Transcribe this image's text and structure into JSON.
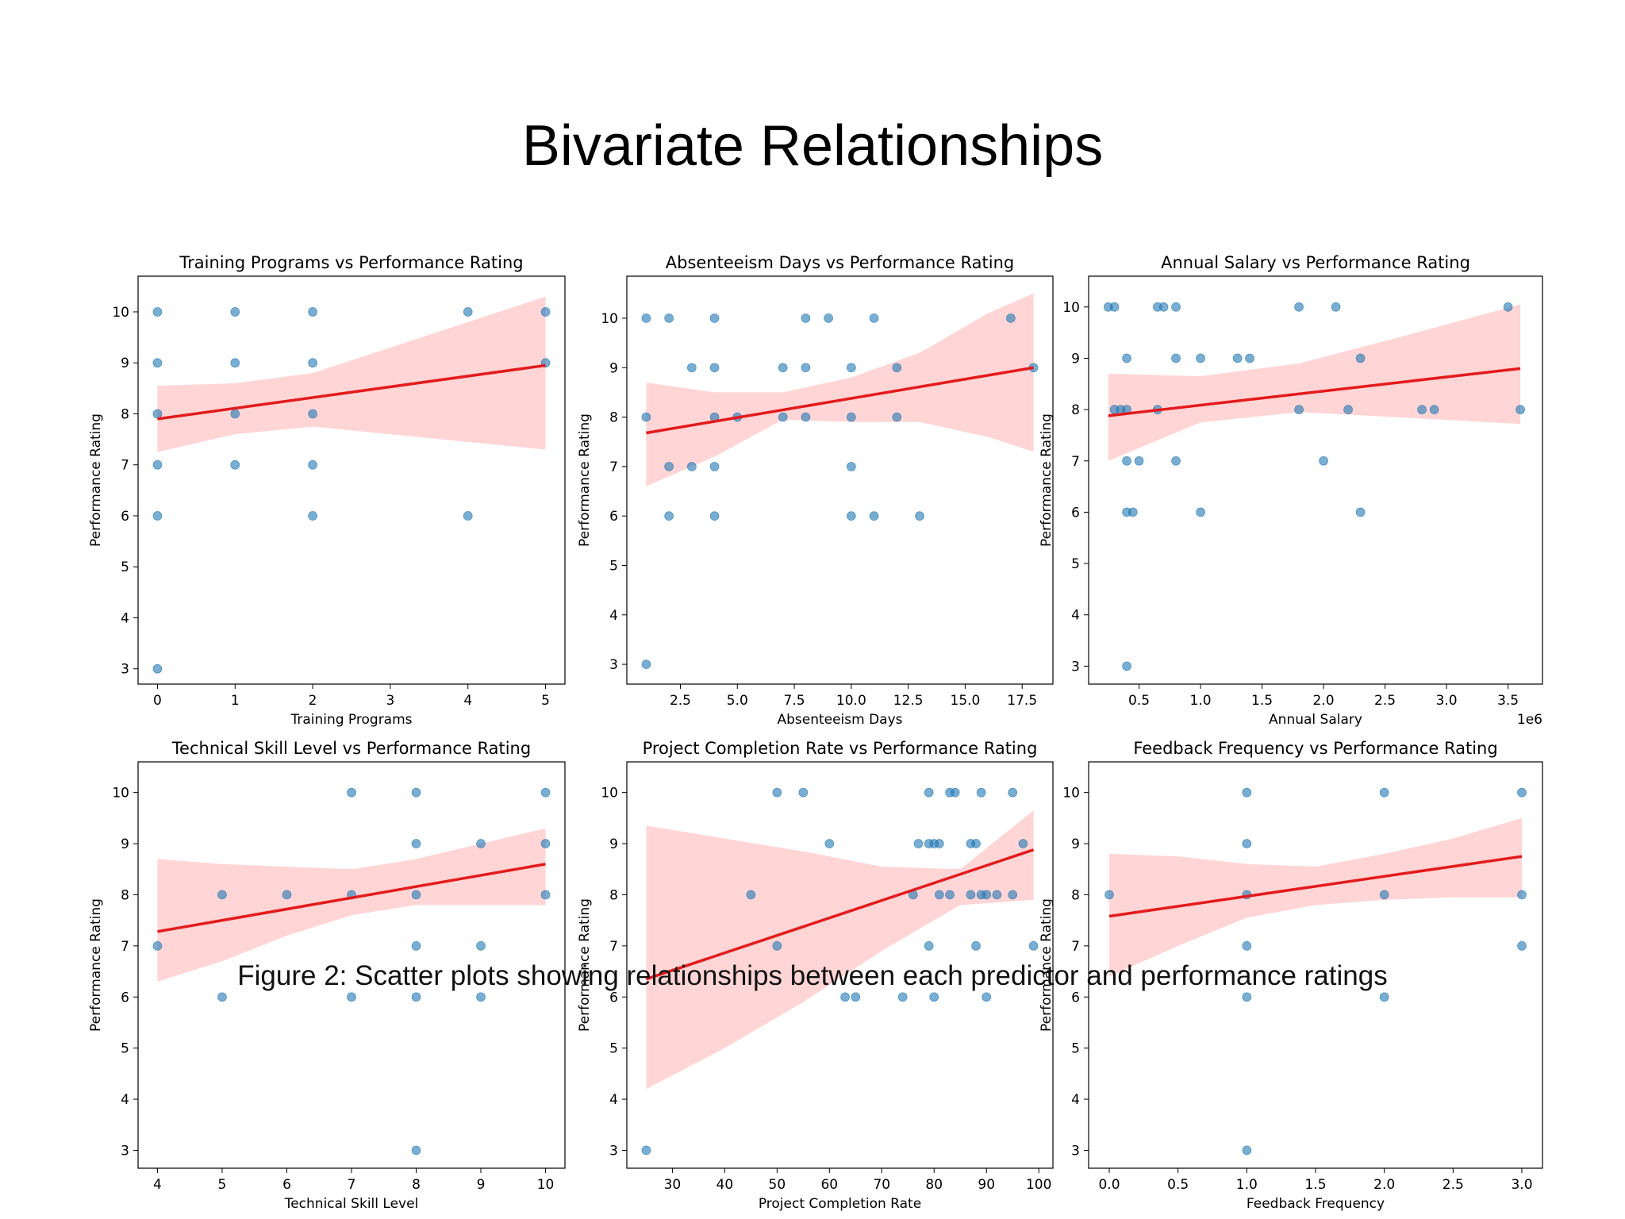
{
  "page": {
    "title": "Bivariate Relationships",
    "caption": "Figure 2: Scatter plots showing relationships between each predictor and performance ratings"
  },
  "colors": {
    "point": "#1f77b4",
    "fit_line": "#e41a1c",
    "confidence_band": "#ffb3b3"
  },
  "chart_data": [
    {
      "type": "scatter",
      "title": "Training Programs vs Performance Rating",
      "xlabel": "Training Programs",
      "ylabel": "Performance Rating",
      "xlim": [
        -0.25,
        5.25
      ],
      "ylim": [
        2.7,
        10.7
      ],
      "xticks": [
        0,
        1,
        2,
        3,
        4,
        5
      ],
      "xtick_labels": [
        "0",
        "1",
        "2",
        "3",
        "4",
        "5"
      ],
      "yticks": [
        3,
        4,
        5,
        6,
        7,
        8,
        9,
        10
      ],
      "ytick_labels": [
        "3",
        "4",
        "5",
        "6",
        "7",
        "8",
        "9",
        "10"
      ],
      "x_offset_label": "",
      "points": [
        [
          0,
          10
        ],
        [
          0,
          9
        ],
        [
          0,
          8
        ],
        [
          0,
          7
        ],
        [
          0,
          6
        ],
        [
          0,
          3
        ],
        [
          1,
          10
        ],
        [
          1,
          9
        ],
        [
          1,
          8
        ],
        [
          1,
          7
        ],
        [
          2,
          10
        ],
        [
          2,
          9
        ],
        [
          2,
          8
        ],
        [
          2,
          7
        ],
        [
          2,
          6
        ],
        [
          4,
          10
        ],
        [
          4,
          6
        ],
        [
          5,
          10
        ],
        [
          5,
          9
        ]
      ],
      "fit": {
        "x": [
          0,
          5
        ],
        "y": [
          7.9,
          8.95
        ]
      },
      "band": {
        "x": [
          0,
          1,
          2,
          3,
          4,
          5
        ],
        "upper": [
          8.55,
          8.6,
          8.8,
          9.3,
          9.8,
          10.3
        ],
        "lower": [
          7.25,
          7.6,
          7.75,
          7.6,
          7.45,
          7.3
        ]
      }
    },
    {
      "type": "scatter",
      "title": "Absenteeism Days vs Performance Rating",
      "xlabel": "Absenteeism Days",
      "ylabel": "Performance Rating",
      "xlim": [
        0.15,
        18.85
      ],
      "ylim": [
        2.6,
        10.85
      ],
      "xticks": [
        2.5,
        5,
        7.5,
        10,
        12.5,
        15,
        17.5
      ],
      "xtick_labels": [
        "2.5",
        "5.0",
        "7.5",
        "10.0",
        "12.5",
        "15.0",
        "17.5"
      ],
      "yticks": [
        3,
        4,
        5,
        6,
        7,
        8,
        9,
        10
      ],
      "ytick_labels": [
        "3",
        "4",
        "5",
        "6",
        "7",
        "8",
        "9",
        "10"
      ],
      "x_offset_label": "",
      "points": [
        [
          1,
          10
        ],
        [
          1,
          8
        ],
        [
          1,
          3
        ],
        [
          2,
          10
        ],
        [
          2,
          7
        ],
        [
          2,
          6
        ],
        [
          3,
          9
        ],
        [
          3,
          7
        ],
        [
          4,
          10
        ],
        [
          4,
          9
        ],
        [
          4,
          8
        ],
        [
          4,
          7
        ],
        [
          4,
          6
        ],
        [
          5,
          8
        ],
        [
          7,
          9
        ],
        [
          7,
          8
        ],
        [
          8,
          10
        ],
        [
          8,
          9
        ],
        [
          8,
          8
        ],
        [
          9,
          10
        ],
        [
          10,
          9
        ],
        [
          10,
          8
        ],
        [
          10,
          7
        ],
        [
          10,
          6
        ],
        [
          11,
          10
        ],
        [
          11,
          6
        ],
        [
          12,
          9
        ],
        [
          12,
          8
        ],
        [
          13,
          6
        ],
        [
          17,
          10
        ],
        [
          18,
          9
        ]
      ],
      "fit": {
        "x": [
          1,
          18
        ],
        "y": [
          7.68,
          9.0
        ]
      },
      "band": {
        "x": [
          1,
          4,
          7,
          10,
          13,
          16,
          18
        ],
        "upper": [
          8.7,
          8.5,
          8.5,
          8.8,
          9.3,
          10.1,
          10.5
        ],
        "lower": [
          6.6,
          7.2,
          7.95,
          7.9,
          7.9,
          7.6,
          7.3
        ]
      }
    },
    {
      "type": "scatter",
      "title": "Annual Salary vs Performance Rating",
      "xlabel": "Annual Salary",
      "ylabel": "Performance Rating",
      "xlim": [
        90000,
        3780000
      ],
      "ylim": [
        2.65,
        10.6
      ],
      "xticks": [
        500000,
        1000000,
        1500000,
        2000000,
        2500000,
        3000000,
        3500000
      ],
      "xtick_labels": [
        "0.5",
        "1.0",
        "1.5",
        "2.0",
        "2.5",
        "3.0",
        "3.5"
      ],
      "yticks": [
        3,
        4,
        5,
        6,
        7,
        8,
        9,
        10
      ],
      "ytick_labels": [
        "3",
        "4",
        "5",
        "6",
        "7",
        "8",
        "9",
        "10"
      ],
      "x_offset_label": "1e6",
      "points": [
        [
          250000,
          10
        ],
        [
          300000,
          10
        ],
        [
          650000,
          10
        ],
        [
          700000,
          10
        ],
        [
          800000,
          10
        ],
        [
          1800000,
          10
        ],
        [
          2100000,
          10
        ],
        [
          3500000,
          10
        ],
        [
          400000,
          9
        ],
        [
          800000,
          9
        ],
        [
          1000000,
          9
        ],
        [
          1300000,
          9
        ],
        [
          1400000,
          9
        ],
        [
          2300000,
          9
        ],
        [
          300000,
          8
        ],
        [
          350000,
          8
        ],
        [
          400000,
          8
        ],
        [
          650000,
          8
        ],
        [
          1800000,
          8
        ],
        [
          2200000,
          8
        ],
        [
          2800000,
          8
        ],
        [
          2900000,
          8
        ],
        [
          3600000,
          8
        ],
        [
          400000,
          7
        ],
        [
          500000,
          7
        ],
        [
          800000,
          7
        ],
        [
          2000000,
          7
        ],
        [
          400000,
          6
        ],
        [
          450000,
          6
        ],
        [
          1000000,
          6
        ],
        [
          2300000,
          6
        ],
        [
          400000,
          3
        ]
      ],
      "fit": {
        "x": [
          250000,
          3600000
        ],
        "y": [
          7.88,
          8.8
        ]
      },
      "band": {
        "x": [
          250000,
          1000000,
          1800000,
          2600000,
          3600000
        ],
        "upper": [
          8.7,
          8.65,
          8.9,
          9.4,
          10.05
        ],
        "lower": [
          7.0,
          7.75,
          7.95,
          7.85,
          7.72
        ]
      }
    },
    {
      "type": "scatter",
      "title": "Technical Skill Level vs Performance Rating",
      "xlabel": "Technical Skill Level",
      "ylabel": "Performance Rating",
      "xlim": [
        3.7,
        10.3
      ],
      "ylim": [
        2.65,
        10.6
      ],
      "xticks": [
        4,
        5,
        6,
        7,
        8,
        9,
        10
      ],
      "xtick_labels": [
        "4",
        "5",
        "6",
        "7",
        "8",
        "9",
        "10"
      ],
      "yticks": [
        3,
        4,
        5,
        6,
        7,
        8,
        9,
        10
      ],
      "ytick_labels": [
        "3",
        "4",
        "5",
        "6",
        "7",
        "8",
        "9",
        "10"
      ],
      "x_offset_label": "",
      "points": [
        [
          4,
          7
        ],
        [
          5,
          8
        ],
        [
          5,
          6
        ],
        [
          6,
          8
        ],
        [
          7,
          10
        ],
        [
          7,
          8
        ],
        [
          7,
          6
        ],
        [
          8,
          10
        ],
        [
          8,
          9
        ],
        [
          8,
          8
        ],
        [
          8,
          7
        ],
        [
          8,
          6
        ],
        [
          8,
          3
        ],
        [
          9,
          9
        ],
        [
          9,
          7
        ],
        [
          9,
          6
        ],
        [
          10,
          10
        ],
        [
          10,
          9
        ],
        [
          10,
          8
        ]
      ],
      "fit": {
        "x": [
          4,
          10
        ],
        "y": [
          7.28,
          8.6
        ]
      },
      "band": {
        "x": [
          4,
          5,
          6,
          7,
          8,
          9,
          10
        ],
        "upper": [
          8.7,
          8.6,
          8.55,
          8.5,
          8.7,
          9.0,
          9.3
        ],
        "lower": [
          6.3,
          6.7,
          7.2,
          7.6,
          7.8,
          7.8,
          7.8
        ]
      }
    },
    {
      "type": "scatter",
      "title": "Project Completion Rate vs Performance Rating",
      "xlabel": "Project Completion Rate",
      "ylabel": "Performance Rating",
      "xlim": [
        21.3,
        102.7
      ],
      "ylim": [
        2.65,
        10.6
      ],
      "xticks": [
        30,
        40,
        50,
        60,
        70,
        80,
        90,
        100
      ],
      "xtick_labels": [
        "30",
        "40",
        "50",
        "60",
        "70",
        "80",
        "90",
        "100"
      ],
      "yticks": [
        3,
        4,
        5,
        6,
        7,
        8,
        9,
        10
      ],
      "ytick_labels": [
        "3",
        "4",
        "5",
        "6",
        "7",
        "8",
        "9",
        "10"
      ],
      "x_offset_label": "",
      "points": [
        [
          50,
          10
        ],
        [
          55,
          10
        ],
        [
          79,
          10
        ],
        [
          83,
          10
        ],
        [
          84,
          10
        ],
        [
          89,
          10
        ],
        [
          95,
          10
        ],
        [
          60,
          9
        ],
        [
          77,
          9
        ],
        [
          79,
          9
        ],
        [
          80,
          9
        ],
        [
          81,
          9
        ],
        [
          87,
          9
        ],
        [
          88,
          9
        ],
        [
          97,
          9
        ],
        [
          45,
          8
        ],
        [
          76,
          8
        ],
        [
          81,
          8
        ],
        [
          83,
          8
        ],
        [
          87,
          8
        ],
        [
          89,
          8
        ],
        [
          90,
          8
        ],
        [
          92,
          8
        ],
        [
          95,
          8
        ],
        [
          50,
          7
        ],
        [
          79,
          7
        ],
        [
          88,
          7
        ],
        [
          99,
          7
        ],
        [
          63,
          6
        ],
        [
          65,
          6
        ],
        [
          74,
          6
        ],
        [
          80,
          6
        ],
        [
          90,
          6
        ],
        [
          25,
          3
        ]
      ],
      "fit": {
        "x": [
          25,
          99
        ],
        "y": [
          6.35,
          8.88
        ]
      },
      "band": {
        "x": [
          25,
          40,
          55,
          70,
          85,
          99
        ],
        "upper": [
          9.35,
          9.1,
          8.85,
          8.55,
          8.5,
          9.65
        ],
        "lower": [
          4.2,
          5.0,
          5.9,
          6.9,
          7.8,
          7.9
        ]
      }
    },
    {
      "type": "scatter",
      "title": "Feedback Frequency vs Performance Rating",
      "xlabel": "Feedback Frequency",
      "ylabel": "Performance Rating",
      "xlim": [
        -0.15,
        3.15
      ],
      "ylim": [
        2.65,
        10.6
      ],
      "xticks": [
        0,
        0.5,
        1,
        1.5,
        2,
        2.5,
        3
      ],
      "xtick_labels": [
        "0.0",
        "0.5",
        "1.0",
        "1.5",
        "2.0",
        "2.5",
        "3.0"
      ],
      "yticks": [
        3,
        4,
        5,
        6,
        7,
        8,
        9,
        10
      ],
      "ytick_labels": [
        "3",
        "4",
        "5",
        "6",
        "7",
        "8",
        "9",
        "10"
      ],
      "x_offset_label": "",
      "points": [
        [
          0,
          8
        ],
        [
          1,
          10
        ],
        [
          1,
          9
        ],
        [
          1,
          8
        ],
        [
          1,
          7
        ],
        [
          1,
          6
        ],
        [
          1,
          3
        ],
        [
          2,
          10
        ],
        [
          2,
          8
        ],
        [
          2,
          6
        ],
        [
          3,
          10
        ],
        [
          3,
          8
        ],
        [
          3,
          7
        ]
      ],
      "fit": {
        "x": [
          0,
          3
        ],
        "y": [
          7.58,
          8.75
        ]
      },
      "band": {
        "x": [
          0,
          0.5,
          1,
          1.5,
          2,
          2.5,
          3
        ],
        "upper": [
          8.8,
          8.75,
          8.6,
          8.55,
          8.8,
          9.1,
          9.5
        ],
        "lower": [
          6.4,
          7.0,
          7.55,
          7.8,
          7.9,
          7.95,
          7.95
        ]
      }
    }
  ]
}
